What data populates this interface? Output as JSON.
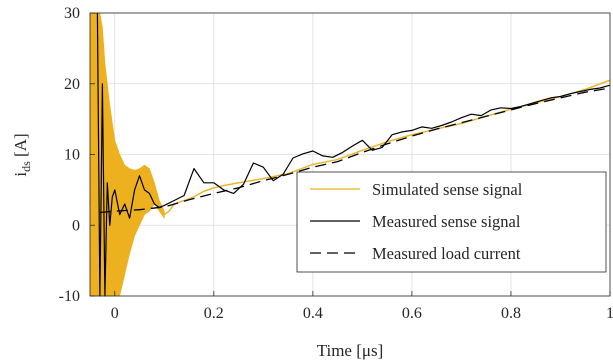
{
  "chart_data": {
    "type": "line",
    "xlabel": "Time [μs]",
    "ylabel": "i_ds [A]",
    "ylabel_main": "i",
    "ylabel_sub": "ds",
    "ylabel_unit": " [A]",
    "xlim": [
      -0.05,
      1.0
    ],
    "ylim": [
      -10,
      30
    ],
    "xticks": [
      0,
      0.2,
      0.4,
      0.6,
      0.8,
      1
    ],
    "xtick_labels": [
      "0",
      "0.2",
      "0.4",
      "0.6",
      "0.8",
      "1"
    ],
    "yticks": [
      -10,
      0,
      10,
      20,
      30
    ],
    "ytick_labels": [
      "-10",
      "0",
      "10",
      "20",
      "30"
    ],
    "grid": true,
    "legend_position": "bottom-right",
    "series": [
      {
        "name": "Simulated sense signal",
        "color": "#EDB120",
        "style": "solid",
        "x": [
          -0.05,
          -0.04,
          -0.035,
          -0.03,
          -0.025,
          -0.02,
          -0.015,
          -0.01,
          -0.005,
          0.0,
          0.01,
          0.02,
          0.03,
          0.04,
          0.05,
          0.06,
          0.07,
          0.08,
          0.09,
          0.1,
          0.11,
          0.12,
          0.14,
          0.16,
          0.18,
          0.2,
          0.22,
          0.25,
          0.3,
          0.35,
          0.4,
          0.45,
          0.5,
          0.55,
          0.6,
          0.65,
          0.7,
          0.75,
          0.8,
          0.85,
          0.9,
          0.95,
          1.0
        ],
        "values": [
          3,
          12,
          9,
          8,
          9,
          7,
          7.5,
          6.5,
          7,
          6,
          6.5,
          6,
          5.5,
          6.5,
          7.5,
          8,
          7,
          5,
          3,
          1.5,
          2,
          3,
          3.5,
          4,
          4.8,
          5.3,
          5.6,
          6,
          6.6,
          7.3,
          8.6,
          9.3,
          10.6,
          11.8,
          12.8,
          13.6,
          14.4,
          15.4,
          16.4,
          17.3,
          18.2,
          19.2,
          20.5
        ],
        "envelope_upper": [
          30,
          30,
          30,
          30,
          28,
          23,
          20,
          17,
          14.5,
          12,
          10,
          8.5,
          8,
          7.8,
          8,
          8.5,
          8,
          6,
          3.5,
          2
        ],
        "envelope_lower": [
          -10,
          -10,
          -10,
          -10,
          -10,
          -10,
          -10,
          -10,
          -10,
          -10,
          -10,
          -7,
          -4,
          -1.5,
          0,
          1.5,
          2,
          3,
          2,
          1
        ],
        "envelope_x": [
          -0.05,
          -0.04,
          -0.035,
          -0.03,
          -0.025,
          -0.02,
          -0.015,
          -0.01,
          -0.005,
          0.0,
          0.01,
          0.02,
          0.03,
          0.04,
          0.05,
          0.06,
          0.07,
          0.08,
          0.09,
          0.1
        ]
      },
      {
        "name": "Measured sense signal",
        "color": "#000000",
        "style": "solid",
        "x": [
          -0.035,
          -0.03,
          -0.025,
          -0.02,
          -0.015,
          -0.01,
          -0.005,
          0.0,
          0.01,
          0.02,
          0.03,
          0.04,
          0.05,
          0.06,
          0.07,
          0.08,
          0.09,
          0.1,
          0.12,
          0.14,
          0.16,
          0.18,
          0.2,
          0.22,
          0.24,
          0.26,
          0.28,
          0.3,
          0.32,
          0.34,
          0.36,
          0.38,
          0.4,
          0.42,
          0.44,
          0.46,
          0.48,
          0.5,
          0.52,
          0.54,
          0.56,
          0.58,
          0.6,
          0.62,
          0.64,
          0.66,
          0.68,
          0.7,
          0.72,
          0.74,
          0.76,
          0.78,
          0.8,
          0.82,
          0.84,
          0.86,
          0.88,
          0.9,
          0.92,
          0.94,
          0.96,
          0.98,
          1.0
        ],
        "values": [
          30,
          -10,
          20,
          -10,
          6,
          0,
          4,
          5,
          1.5,
          3,
          1,
          5,
          7,
          5,
          4.5,
          3,
          2.5,
          2.8,
          3.5,
          4.2,
          8,
          6,
          6,
          5,
          4.5,
          5.8,
          8.8,
          8.2,
          6.3,
          7.2,
          9.5,
          10.1,
          10.5,
          9.8,
          9.6,
          10.3,
          11.2,
          12,
          10.6,
          11,
          12.8,
          13.2,
          13.4,
          13.9,
          13.7,
          14.1,
          14.6,
          15.2,
          15.7,
          15.5,
          16.3,
          16.6,
          16.5,
          16.8,
          17.2,
          17.6,
          18,
          18.2,
          18.6,
          18.9,
          19.2,
          19.4,
          19.8
        ]
      },
      {
        "name": "Measured load current",
        "color": "#000000",
        "style": "dashed",
        "x": [
          -0.03,
          0.0,
          0.05,
          0.1,
          0.15,
          0.2,
          0.25,
          0.3,
          0.35,
          0.4,
          0.45,
          0.5,
          0.55,
          0.6,
          0.65,
          0.7,
          0.75,
          0.8,
          0.85,
          0.9,
          0.95,
          1.0
        ],
        "values": [
          1.8,
          2,
          2.2,
          2.6,
          3.6,
          4.5,
          5.3,
          6.3,
          7.2,
          8.2,
          9,
          10.3,
          11.5,
          12.6,
          13.6,
          14.5,
          15.4,
          16.3,
          17.2,
          18,
          18.8,
          19.4
        ]
      }
    ]
  }
}
